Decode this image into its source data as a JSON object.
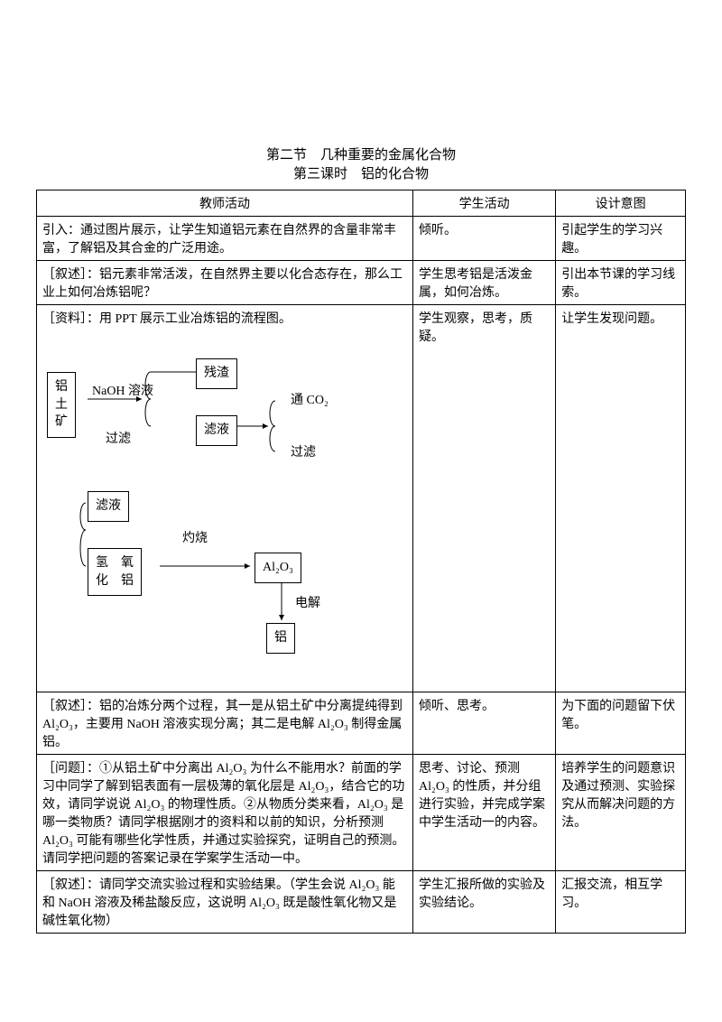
{
  "title1": "第二节　几种重要的金属化合物",
  "title2": "第三课时　铝的化合物",
  "headers": {
    "c1": "教师活动",
    "c2": "学生活动",
    "c3": "设计意图"
  },
  "rows": [
    {
      "c1": "引入：通过图片展示，让学生知道铝元素在自然界的含量非常丰富，了解铝及其合金的广泛用途。",
      "c2": "倾听。",
      "c3": "引起学生的学习兴趣。"
    },
    {
      "c1": "［叙述］：铝元素非常活泼，在自然界主要以化合态存在，那么工业上如何冶炼铝呢？",
      "c2": "学生思考铝是活泼金属，如何冶炼。",
      "c3": "引出本节课的学习线索。"
    },
    {
      "c1_pre": "［资料］：用 PPT 展示工业冶炼铝的流程图。",
      "c2": "学生观察，思考，质疑。",
      "c3": "让学生发现问题。"
    },
    {
      "c1": "［叙述］：铝的冶炼分两个过程，其一是从铝土矿中分离提纯得到 Al₂O₃，主要用 NaOH 溶液实现分离；其二是电解 Al₂O₃ 制得金属铝。",
      "c2": "倾听、思考。",
      "c3": "为下面的问题留下伏笔。"
    },
    {
      "c1": "［问题］：①从铝土矿中分离出 Al₂O₃ 为什么不能用水？前面的学习中同学了解到铝表面有一层极薄的氧化层是 Al₂O₃，结合它的功效，请同学说说 Al₂O₃ 的物理性质。②从物质分类来看，Al₂O₃ 是哪一类物质？请同学根据刚才的资料和以前的知识，分析预测 Al₂O₃ 可能有哪些化学性质，并通过实验探究，证明自己的预测。请同学把问题的答案记录在学案学生活动一中。",
      "c2": "思考、讨论、预测 Al₂O₃ 的性质，并分组进行实验，并完成学案中学生活动一的内容。",
      "c3": "培养学生的问题意识及通过预测、实验探究从而解决问题的方法。"
    },
    {
      "c1": "［叙述］：请同学交流实验过程和实验结果。（学生会说 Al₂O₃ 能和 NaOH 溶液及稀盐酸反应，这说明 Al₂O₃ 既是酸性氧化物又是碱性氧化物）",
      "c2": "学生汇报所做的实验及实验结论。",
      "c3": "汇报交流，相互学习。"
    }
  ],
  "diagram": {
    "boxes": {
      "ore": {
        "text": "铝\n土\n矿"
      },
      "residue": {
        "text": "残渣"
      },
      "filt1": {
        "text": "滤液"
      },
      "filt2": {
        "text": "滤液"
      },
      "aloh": {
        "text": "氢　氧\n化　铝"
      },
      "al2o3": {
        "text": "Al₂O₃"
      },
      "al": {
        "text": "铝"
      }
    },
    "labels": {
      "naoh": "NaOH 溶液",
      "guolv1": "过滤",
      "co2": "通 CO₂",
      "guolv2": "过滤",
      "zhuoshao": "灼烧",
      "dianjie": "电解"
    }
  }
}
